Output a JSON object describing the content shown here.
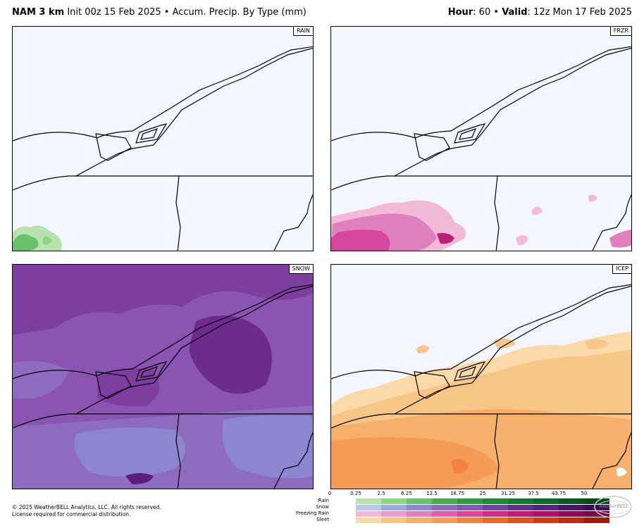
{
  "header": {
    "model": "NAM 3 km",
    "init": "Init 00z 15 Feb 2025",
    "bullet": "•",
    "product": "Accum. Precip. By Type (mm)",
    "hour_label": "Hour",
    "hour_value": ": 60",
    "valid_label": "Valid",
    "valid_value": ": 12z Mon 17 Feb 2025"
  },
  "panels": [
    {
      "id": "rain",
      "label": "RAIN"
    },
    {
      "id": "frzr",
      "label": "FRZR"
    },
    {
      "id": "snow",
      "label": "SNOW"
    },
    {
      "id": "icep",
      "label": "ICEP"
    }
  ],
  "legend": {
    "ticks": [
      "0",
      "0.25",
      "2.5",
      "6.25",
      "12.5",
      "18.75",
      "25",
      "31.25",
      "37.5",
      "43.75",
      "50"
    ],
    "rows": [
      {
        "label": "Rain",
        "colors": [
          "#b7e2b0",
          "#8fd28a",
          "#69c26a",
          "#45ac52",
          "#2e9a44",
          "#1f8a3a",
          "#147a30",
          "#0d6a28",
          "#085a20",
          "#044a18"
        ]
      },
      {
        "label": "Snow",
        "colors": [
          "#b9c9ec",
          "#9aa8dd",
          "#8b86cf",
          "#8d6cc0",
          "#8a55b2",
          "#7d3ea0",
          "#6d2b8e",
          "#5d1d7c",
          "#4c126a",
          "#3b0958"
        ]
      },
      {
        "label": "Freezing Rain",
        "colors": [
          "#f2b9d8",
          "#e89ccd",
          "#e07fbd",
          "#da62ad",
          "#d4479d",
          "#c9308c",
          "#b81f79",
          "#a31366",
          "#8c0b55",
          "#730644"
        ]
      },
      {
        "label": "Sleet",
        "colors": [
          "#fbd9a8",
          "#f9c689",
          "#f7b06c",
          "#f59a57",
          "#f2823f",
          "#ea6a2c",
          "#de5220",
          "#cf3d16",
          "#b92a0e",
          "#9e1b08"
        ]
      }
    ]
  },
  "footer": {
    "copyright": "© 2025 WeatherBELL Analytics, LLC. All rights reserved.",
    "license": "License required for commercial distribution.",
    "logo_text": "WeatherBELL"
  }
}
